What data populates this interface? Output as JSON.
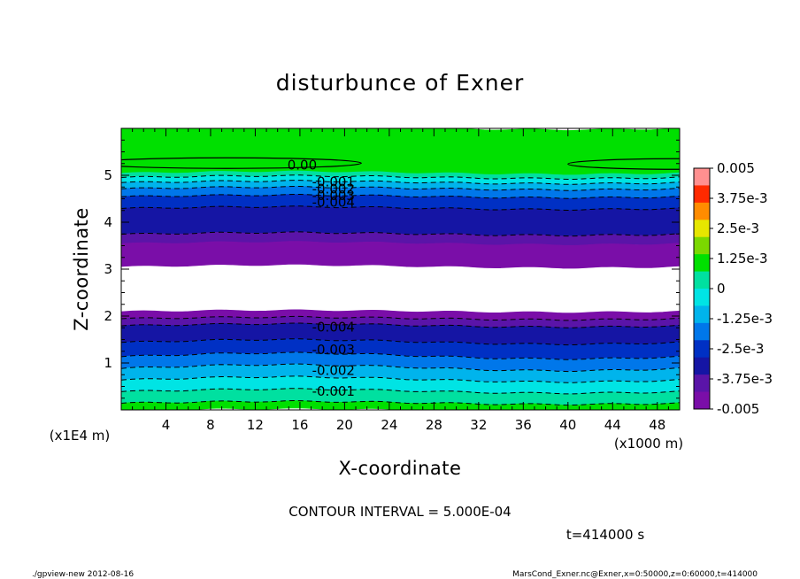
{
  "chart_data": {
    "type": "heatmap",
    "subtype": "filled-contour",
    "title": "disturbunce of Exner",
    "xlabel": "X-coordinate",
    "ylabel": "Z-coordinate",
    "x_unit_label": "(x1000 m)",
    "y_unit_label": "(x1E4 m)",
    "xlim": [
      0,
      50
    ],
    "ylim": [
      0,
      6
    ],
    "x_ticks": [
      "4",
      "8",
      "12",
      "16",
      "20",
      "24",
      "28",
      "32",
      "36",
      "40",
      "44",
      "48"
    ],
    "y_ticks": [
      "1",
      "2",
      "3",
      "4",
      "5"
    ],
    "contour_interval_text": "CONTOUR INTERVAL = 5.000E-04",
    "time_text": "t=414000 s",
    "colorbar": {
      "labels": [
        "0.005",
        "3.75e-3",
        "2.5e-3",
        "1.25e-3",
        "0",
        "-1.25e-3",
        "-2.5e-3",
        "-3.75e-3",
        "-0.005"
      ],
      "colors": [
        "#ff9090",
        "#ff2a00",
        "#ff8c00",
        "#e6e600",
        "#7bd800",
        "#00e000",
        "#00e0a0",
        "#00e4e4",
        "#00b4ec",
        "#0077ea",
        "#0030c4",
        "#1515a4",
        "#5a14a8",
        "#7a0ea8"
      ],
      "range": [
        -0.005,
        0.005
      ]
    },
    "contour_labels": [
      {
        "text": "0.00",
        "x": 16.2,
        "z": 5.22
      },
      {
        "text": "-0.001",
        "x": 19,
        "z": 4.86
      },
      {
        "text": "-0.002",
        "x": 19,
        "z": 4.71
      },
      {
        "text": "-0.003",
        "x": 19,
        "z": 4.57
      },
      {
        "text": "-0.004",
        "x": 19,
        "z": 4.42
      },
      {
        "text": "-0.004",
        "x": 19,
        "z": 1.76
      },
      {
        "text": "-0.003",
        "x": 19,
        "z": 1.28
      },
      {
        "text": "-0.002",
        "x": 19,
        "z": 0.84
      },
      {
        "text": "-0.001",
        "x": 19,
        "z": 0.4
      }
    ],
    "bands": [
      {
        "z_min": 5.05,
        "z_max": 6.0,
        "value": 0.0,
        "color": "#00e000"
      },
      {
        "z_min": 4.96,
        "z_max": 5.05,
        "value": -0.0005,
        "color": "#00e0a0"
      },
      {
        "z_min": 4.85,
        "z_max": 4.96,
        "value": -0.001,
        "color": "#00e4e4"
      },
      {
        "z_min": 4.72,
        "z_max": 4.85,
        "value": -0.0015,
        "color": "#00b4ec"
      },
      {
        "z_min": 4.55,
        "z_max": 4.72,
        "value": -0.0025,
        "color": "#0077ea"
      },
      {
        "z_min": 4.3,
        "z_max": 4.55,
        "value": -0.0035,
        "color": "#0030c4"
      },
      {
        "z_min": 3.75,
        "z_max": 4.3,
        "value": -0.004,
        "color": "#1515a4"
      },
      {
        "z_min": 3.55,
        "z_max": 3.75,
        "value": -0.0045,
        "color": "#5a14a8"
      },
      {
        "z_min": 3.05,
        "z_max": 3.55,
        "value": -0.005,
        "color": "#7a0ea8"
      },
      {
        "z_min": 2.1,
        "z_max": 3.05,
        "value": null,
        "color": "#ffffff"
      },
      {
        "z_min": 1.95,
        "z_max": 2.1,
        "value": -0.005,
        "color": "#7a0ea8"
      },
      {
        "z_min": 1.8,
        "z_max": 1.95,
        "value": -0.0045,
        "color": "#5a14a8"
      },
      {
        "z_min": 1.45,
        "z_max": 1.8,
        "value": -0.004,
        "color": "#1515a4"
      },
      {
        "z_min": 1.15,
        "z_max": 1.45,
        "value": -0.0035,
        "color": "#0030c4"
      },
      {
        "z_min": 0.9,
        "z_max": 1.15,
        "value": -0.0025,
        "color": "#0077ea"
      },
      {
        "z_min": 0.65,
        "z_max": 0.9,
        "value": -0.002,
        "color": "#00b4ec"
      },
      {
        "z_min": 0.4,
        "z_max": 0.65,
        "value": -0.0015,
        "color": "#00e4e4"
      },
      {
        "z_min": 0.15,
        "z_max": 0.4,
        "value": -0.001,
        "color": "#00e0a0"
      },
      {
        "z_min": 0.0,
        "z_max": 0.15,
        "value": 0.0,
        "color": "#00e000"
      }
    ],
    "grid": false
  },
  "footer": {
    "left": "./gpview-new  2012-08-16",
    "right": "MarsCond_Exner.nc@Exner,x=0:50000,z=0:60000,t=414000"
  }
}
